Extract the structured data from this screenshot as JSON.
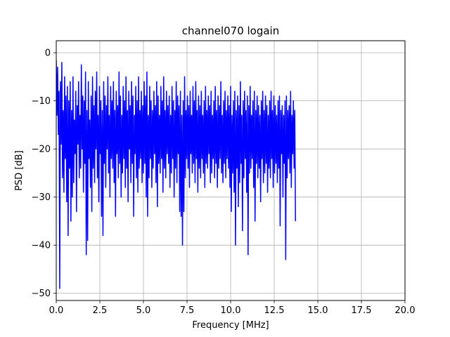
{
  "chart_data": {
    "type": "line",
    "title": "channel070 logain",
    "xlabel": "Frequency [MHz]",
    "ylabel": "PSD [dB]",
    "xlim": [
      0,
      20
    ],
    "ylim": [
      -51.5,
      2.5
    ],
    "x_ticks": [
      0,
      2.5,
      5,
      7.5,
      10,
      12.5,
      15,
      17.5,
      20
    ],
    "x_tick_labels": [
      "0.0",
      "2.5",
      "5.0",
      "7.5",
      "10.0",
      "12.5",
      "15.0",
      "17.5",
      "20.0"
    ],
    "y_ticks": [
      0,
      -10,
      -20,
      -30,
      -40,
      -50
    ],
    "y_tick_labels": [
      "0",
      "−10",
      "−20",
      "−30",
      "−40",
      "−50"
    ],
    "grid": true,
    "series": [
      {
        "color": "#0000ff",
        "x_start": 0,
        "x_step": 0.04,
        "values": [
          -1.5,
          -13,
          -3,
          -17,
          -8,
          -49,
          -6,
          -19,
          -2,
          -26,
          -12,
          -29,
          -5,
          -22,
          -9,
          -31,
          -7,
          -38,
          -10,
          -24,
          -6,
          -35,
          -12,
          -30,
          -5,
          -27,
          -14,
          -21,
          -8,
          -33,
          -11,
          -19,
          -6,
          -26,
          -13,
          -24,
          -2.5,
          -20,
          -9,
          -29,
          -10,
          -23,
          -4,
          -42,
          -12,
          -39,
          -6,
          -22,
          -14,
          -28,
          -9,
          -33,
          -5,
          -24,
          -11,
          -27,
          -8,
          -20,
          -4,
          -26,
          -13,
          -31,
          -7,
          -21,
          -10,
          -34,
          -12,
          -38,
          -6,
          -23,
          -9,
          -28,
          -11,
          -20,
          -5,
          -25,
          -13,
          -30,
          -7,
          -22,
          -10,
          -24,
          -6,
          -27,
          -12,
          -34,
          -8,
          -21,
          -11,
          -26,
          -4,
          -23,
          -9,
          -30,
          -13,
          -25,
          -7,
          -22,
          -10,
          -28,
          -5,
          -24,
          -12,
          -31,
          -8,
          -20,
          -11,
          -27,
          -6,
          -23,
          -9,
          -34,
          -13,
          -21,
          -7,
          -26,
          -10,
          -29,
          -5,
          -24,
          -12,
          -22,
          -8,
          -27,
          -11,
          -25,
          -6,
          -23,
          -9,
          -30,
          -4,
          -34,
          -13,
          -26,
          -7,
          -22,
          -10,
          -28,
          -12,
          -24,
          -8,
          -21,
          -11,
          -27,
          -6,
          -32,
          -9,
          -23,
          -13,
          -25,
          -7,
          -22,
          -10,
          -29,
          -5,
          -24,
          -12,
          -26,
          -8,
          -21,
          -11,
          -23,
          -9,
          -28,
          -13,
          -25,
          -7,
          -22,
          -10,
          -30,
          -12,
          -24,
          -6,
          -27,
          -9,
          -21,
          -11,
          -33,
          -8,
          -34,
          -13,
          -40,
          -10,
          -33,
          -5,
          -26,
          -12,
          -22,
          -9,
          -24,
          -11,
          -28,
          -8,
          -21,
          -13,
          -25,
          -7,
          -23,
          -10,
          -27,
          -6,
          -22,
          -12,
          -29,
          -9,
          -24,
          -11,
          -26,
          -8,
          -22,
          -13,
          -25,
          -10,
          -28,
          -7,
          -23,
          -12,
          -24,
          -9,
          -21,
          -11,
          -27,
          -8,
          -25,
          -13,
          -22,
          -10,
          -26,
          -7,
          -23,
          -12,
          -28,
          -9,
          -24,
          -11,
          -22,
          -6,
          -25,
          -13,
          -27,
          -10,
          -23,
          -8,
          -26,
          -12,
          -22,
          -9,
          -24,
          -11,
          -28,
          -7,
          -33,
          -13,
          -25,
          -10,
          -29,
          -8,
          -40,
          -12,
          -24,
          -9,
          -32,
          -11,
          -27,
          -6,
          -23,
          -13,
          -37,
          -10,
          -26,
          -8,
          -22,
          -12,
          -29,
          -9,
          -42,
          -11,
          -25,
          -7,
          -24,
          -13,
          -22,
          -10,
          -28,
          -8,
          -35,
          -12,
          -23,
          -9,
          -26,
          -11,
          -24,
          -13,
          -31,
          -10,
          -22,
          -8,
          -27,
          -12,
          -25,
          -9,
          -23,
          -11,
          -29,
          -13,
          -24,
          -10,
          -26,
          -8,
          -22,
          -12,
          -28,
          -9,
          -25,
          -11,
          -23,
          -13,
          -27,
          -10,
          -24,
          -9,
          -36,
          -12,
          -21,
          -11,
          -30,
          -13,
          -23,
          -10,
          -43,
          -9,
          -26,
          -12,
          -22,
          -11,
          -25,
          -8,
          -28,
          -13,
          -21,
          -10,
          -24,
          -12,
          -35
        ]
      }
    ]
  }
}
